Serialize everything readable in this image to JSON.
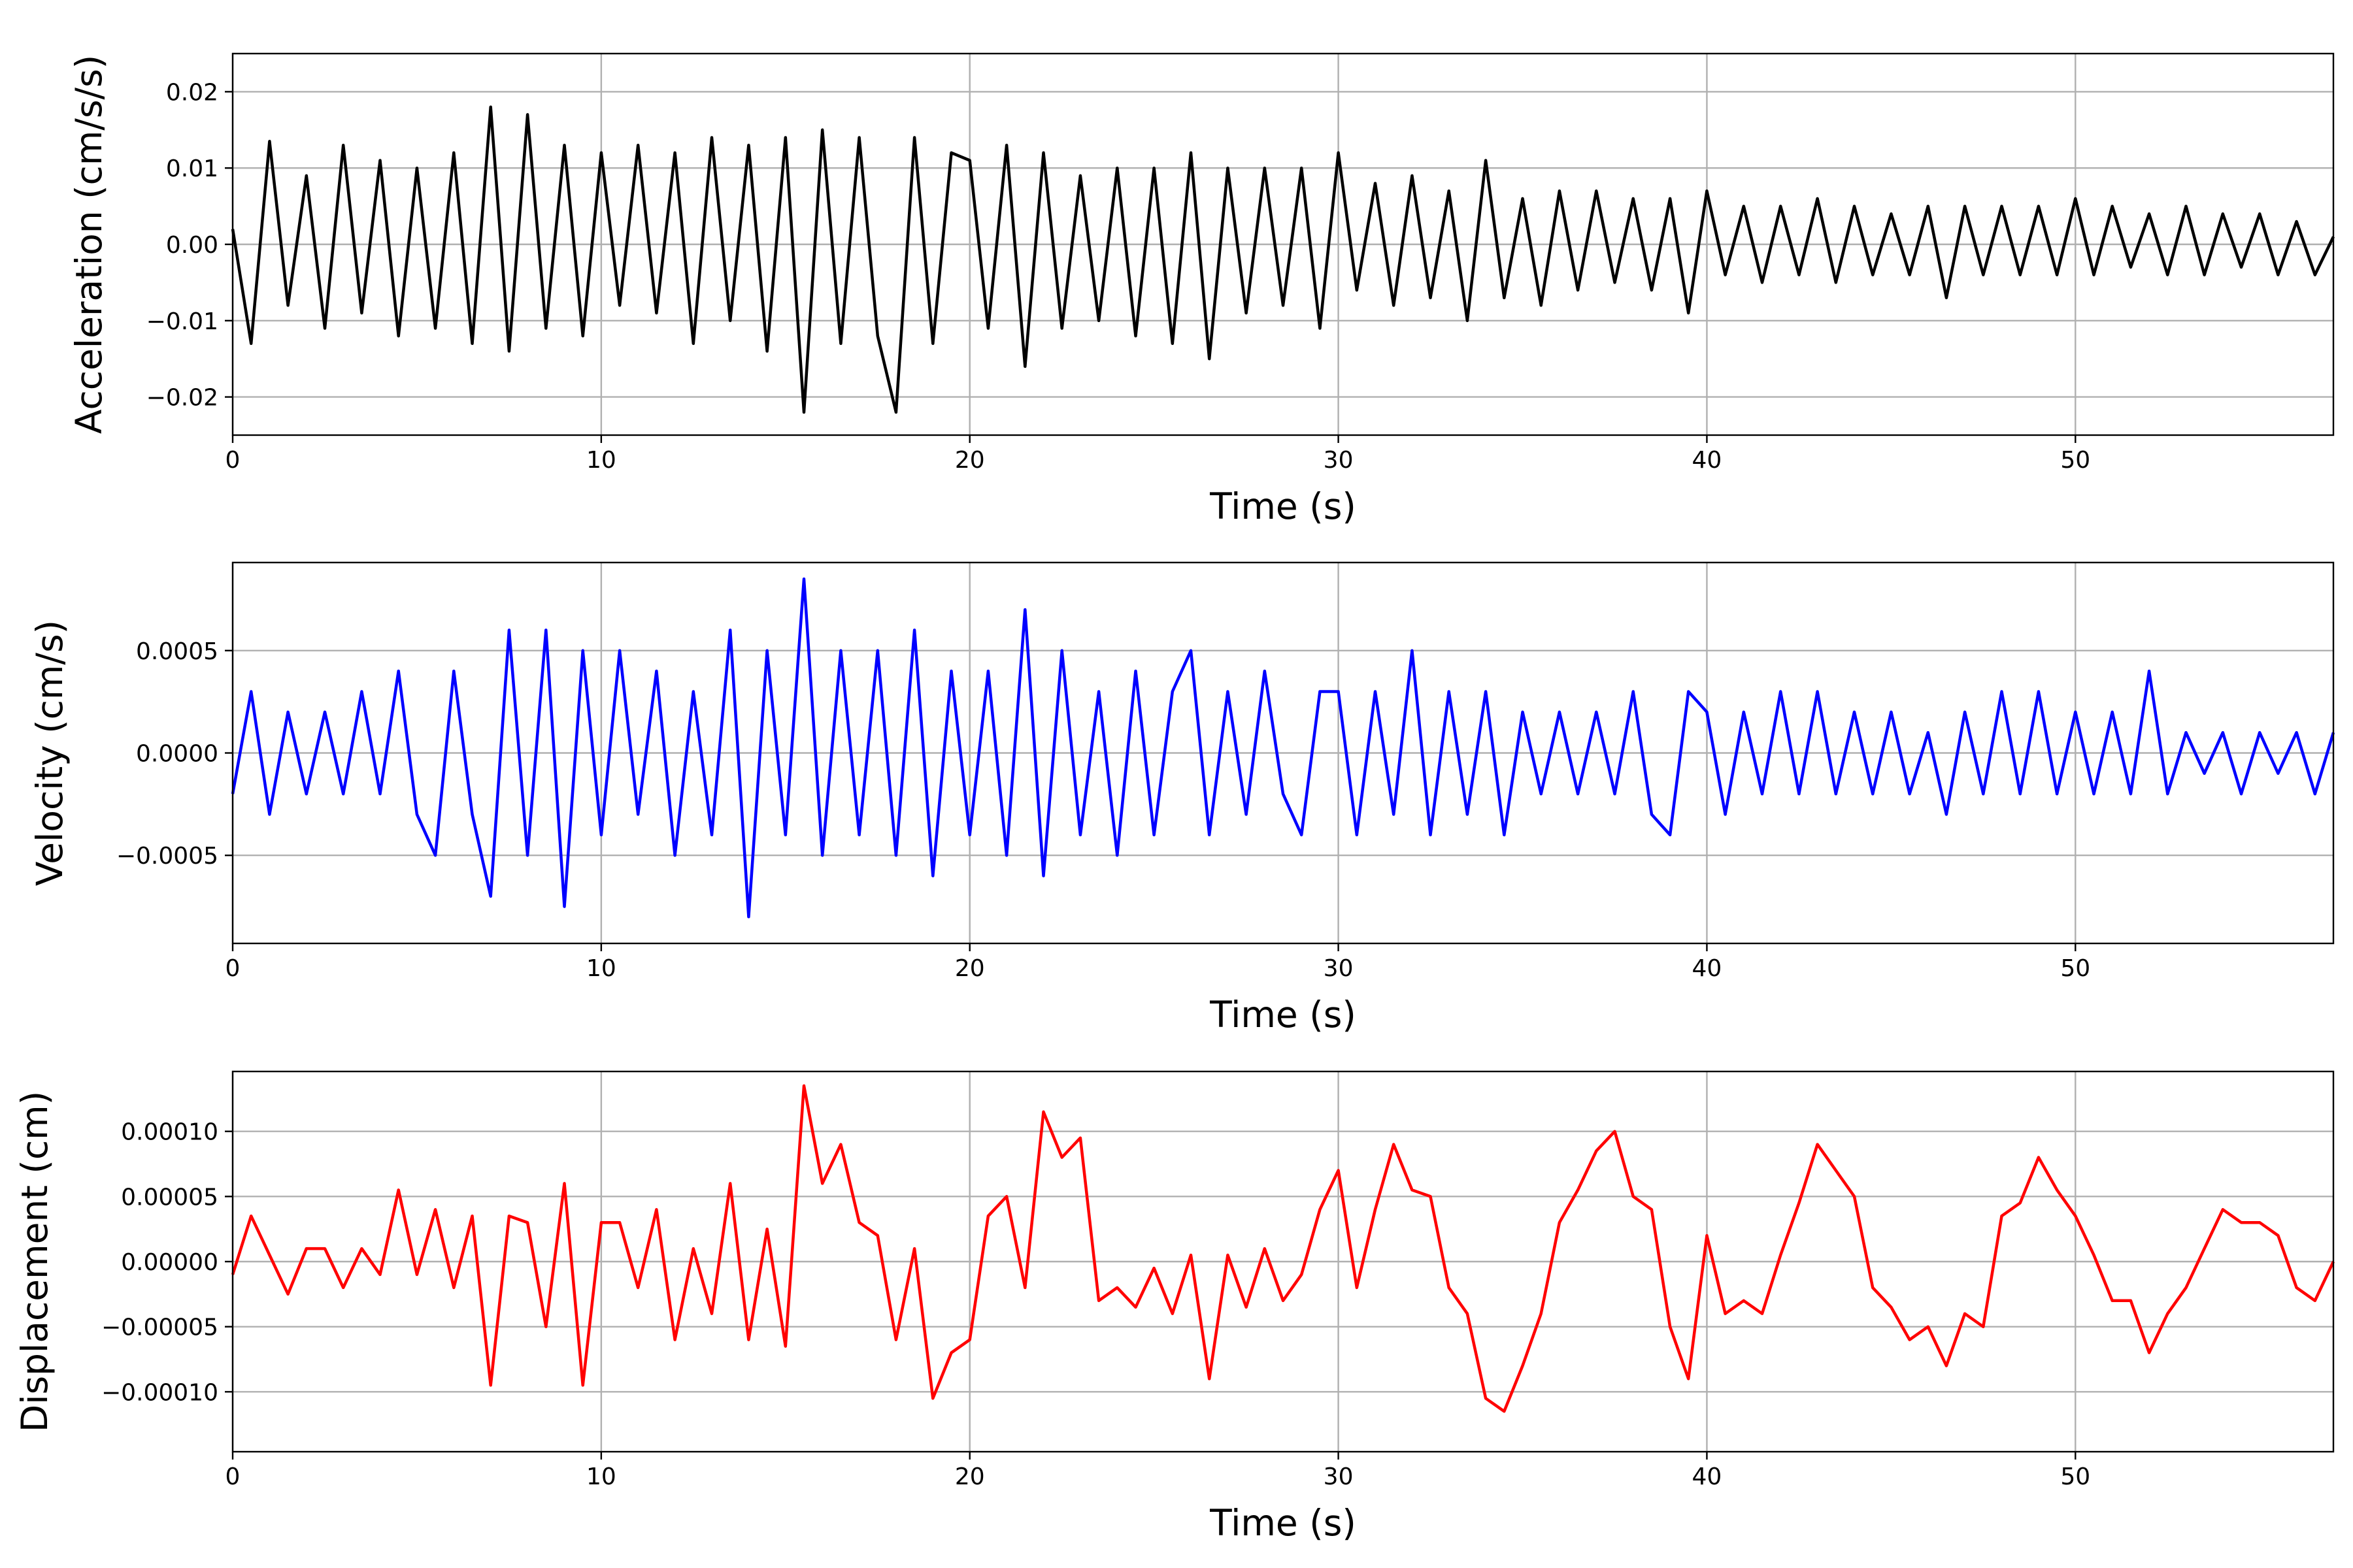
{
  "chart_data": [
    {
      "type": "line",
      "xlabel": "Time (s)",
      "ylabel": "Acceleration (cm/s/s)",
      "xlim": [
        0,
        57
      ],
      "ylim": [
        -0.025,
        0.025
      ],
      "xticks": [
        0,
        10,
        20,
        30,
        40,
        50
      ],
      "xtick_labels": [
        "0",
        "10",
        "20",
        "30",
        "40",
        "50"
      ],
      "yticks": [
        -0.02,
        -0.01,
        0.0,
        0.01,
        0.02
      ],
      "ytick_labels": [
        "−0.02",
        "−0.01",
        "0.00",
        "0.01",
        "0.02"
      ],
      "grid": true,
      "color": "#000000",
      "series": [
        {
          "x": [
            0,
            0.5,
            1,
            1.5,
            2,
            2.5,
            3,
            3.5,
            4,
            4.5,
            5,
            5.5,
            6,
            6.5,
            7,
            7.5,
            8,
            8.5,
            9,
            9.5,
            10,
            10.5,
            11,
            11.5,
            12,
            12.5,
            13,
            13.5,
            14,
            14.5,
            15,
            15.5,
            16,
            16.5,
            17,
            17.5,
            18,
            18.5,
            19,
            19.5,
            20,
            20.5,
            21,
            21.5,
            22,
            22.5,
            23,
            23.5,
            24,
            24.5,
            25,
            25.5,
            26,
            26.5,
            27,
            27.5,
            28,
            28.5,
            29,
            29.5,
            30,
            30.5,
            31,
            31.5,
            32,
            32.5,
            33,
            33.5,
            34,
            34.5,
            35,
            35.5,
            36,
            36.5,
            37,
            37.5,
            38,
            38.5,
            39,
            39.5,
            40,
            40.5,
            41,
            41.5,
            42,
            42.5,
            43,
            43.5,
            44,
            44.5,
            45,
            45.5,
            46,
            46.5,
            47,
            47.5,
            48,
            48.5,
            49,
            49.5,
            50,
            50.5,
            51,
            51.5,
            52,
            52.5,
            53,
            53.5,
            54,
            54.5,
            55,
            55.5,
            56,
            56.5,
            57
          ],
          "y": [
            0.002,
            -0.013,
            0.0135,
            -0.008,
            0.009,
            -0.011,
            0.013,
            -0.009,
            0.011,
            -0.012,
            0.01,
            -0.011,
            0.012,
            -0.013,
            0.018,
            -0.014,
            0.017,
            -0.011,
            0.013,
            -0.012,
            0.012,
            -0.008,
            0.013,
            -0.009,
            0.012,
            -0.013,
            0.014,
            -0.01,
            0.013,
            -0.014,
            0.014,
            -0.022,
            0.015,
            -0.013,
            0.014,
            -0.012,
            -0.022,
            0.014,
            -0.013,
            0.012,
            0.011,
            -0.011,
            0.013,
            -0.016,
            0.012,
            -0.011,
            0.009,
            -0.01,
            0.01,
            -0.012,
            0.01,
            -0.013,
            0.012,
            -0.015,
            0.01,
            -0.009,
            0.01,
            -0.008,
            0.01,
            -0.011,
            0.012,
            -0.006,
            0.008,
            -0.008,
            0.009,
            -0.007,
            0.007,
            -0.01,
            0.011,
            -0.007,
            0.006,
            -0.008,
            0.007,
            -0.006,
            0.007,
            -0.005,
            0.006,
            -0.006,
            0.006,
            -0.009,
            0.007,
            -0.004,
            0.005,
            -0.005,
            0.005,
            -0.004,
            0.006,
            -0.005,
            0.005,
            -0.004,
            0.004,
            -0.004,
            0.005,
            -0.007,
            0.005,
            -0.004,
            0.005,
            -0.004,
            0.005,
            -0.004,
            0.006,
            -0.004,
            0.005,
            -0.003,
            0.004,
            -0.004,
            0.005,
            -0.004,
            0.004,
            -0.003,
            0.004,
            -0.004,
            0.003,
            -0.004,
            0.001
          ]
        }
      ]
    },
    {
      "type": "line",
      "xlabel": "Time (s)",
      "ylabel": "Velocity (cm/s)",
      "xlim": [
        0,
        57
      ],
      "ylim": [
        -0.00093,
        0.00093
      ],
      "xticks": [
        0,
        10,
        20,
        30,
        40,
        50
      ],
      "xtick_labels": [
        "0",
        "10",
        "20",
        "30",
        "40",
        "50"
      ],
      "yticks": [
        -0.0005,
        0.0,
        0.0005
      ],
      "ytick_labels": [
        "−0.0005",
        "0.0000",
        "0.0005"
      ],
      "grid": true,
      "color": "#0000ff",
      "series": [
        {
          "x": [
            0,
            0.5,
            1,
            1.5,
            2,
            2.5,
            3,
            3.5,
            4,
            4.5,
            5,
            5.5,
            6,
            6.5,
            7,
            7.5,
            8,
            8.5,
            9,
            9.5,
            10,
            10.5,
            11,
            11.5,
            12,
            12.5,
            13,
            13.5,
            14,
            14.5,
            15,
            15.5,
            16,
            16.5,
            17,
            17.5,
            18,
            18.5,
            19,
            19.5,
            20,
            20.5,
            21,
            21.5,
            22,
            22.5,
            23,
            23.5,
            24,
            24.5,
            25,
            25.5,
            26,
            26.5,
            27,
            27.5,
            28,
            28.5,
            29,
            29.5,
            30,
            30.5,
            31,
            31.5,
            32,
            32.5,
            33,
            33.5,
            34,
            34.5,
            35,
            35.5,
            36,
            36.5,
            37,
            37.5,
            38,
            38.5,
            39,
            39.5,
            40,
            40.5,
            41,
            41.5,
            42,
            42.5,
            43,
            43.5,
            44,
            44.5,
            45,
            45.5,
            46,
            46.5,
            47,
            47.5,
            48,
            48.5,
            49,
            49.5,
            50,
            50.5,
            51,
            51.5,
            52,
            52.5,
            53,
            53.5,
            54,
            54.5,
            55,
            55.5,
            56,
            56.5,
            57
          ],
          "y": [
            -0.0002,
            0.0003,
            -0.0003,
            0.0002,
            -0.0002,
            0.0002,
            -0.0002,
            0.0003,
            -0.0002,
            0.0004,
            -0.0003,
            -0.0005,
            0.0004,
            -0.0003,
            -0.0007,
            0.0006,
            -0.0005,
            0.0006,
            -0.00075,
            0.0005,
            -0.0004,
            0.0005,
            -0.0003,
            0.0004,
            -0.0005,
            0.0003,
            -0.0004,
            0.0006,
            -0.0008,
            0.0005,
            -0.0004,
            0.00085,
            -0.0005,
            0.0005,
            -0.0004,
            0.0005,
            -0.0005,
            0.0006,
            -0.0006,
            0.0004,
            -0.0004,
            0.0004,
            -0.0005,
            0.0007,
            -0.0006,
            0.0005,
            -0.0004,
            0.0003,
            -0.0005,
            0.0004,
            -0.0004,
            0.0003,
            0.0005,
            -0.0004,
            0.0003,
            -0.0003,
            0.0004,
            -0.0002,
            -0.0004,
            0.0003,
            0.0003,
            -0.0004,
            0.0003,
            -0.0003,
            0.0005,
            -0.0004,
            0.0003,
            -0.0003,
            0.0003,
            -0.0004,
            0.0002,
            -0.0002,
            0.0002,
            -0.0002,
            0.0002,
            -0.0002,
            0.0003,
            -0.0003,
            -0.0004,
            0.0003,
            0.0002,
            -0.0003,
            0.0002,
            -0.0002,
            0.0003,
            -0.0002,
            0.0003,
            -0.0002,
            0.0002,
            -0.0002,
            0.0002,
            -0.0002,
            0.0001,
            -0.0003,
            0.0002,
            -0.0002,
            0.0003,
            -0.0002,
            0.0003,
            -0.0002,
            0.0002,
            -0.0002,
            0.0002,
            -0.0002,
            0.0004,
            -0.0002,
            0.0001,
            -0.0001,
            0.0001,
            -0.0002,
            0.0001,
            -0.0001,
            0.0001,
            -0.0002,
            0.0001
          ]
        }
      ]
    },
    {
      "type": "line",
      "xlabel": "Time (s)",
      "ylabel": "Displacement (cm)",
      "xlim": [
        0,
        57
      ],
      "ylim": [
        -0.000146,
        0.000146
      ],
      "xticks": [
        0,
        10,
        20,
        30,
        40,
        50
      ],
      "xtick_labels": [
        "0",
        "10",
        "20",
        "30",
        "40",
        "50"
      ],
      "yticks": [
        -0.0001,
        -5e-05,
        0.0,
        5e-05,
        0.0001
      ],
      "ytick_labels": [
        "−0.00010",
        "−0.00005",
        "0.00000",
        "0.00005",
        "0.00010"
      ],
      "grid": true,
      "color": "#ff0000",
      "series": [
        {
          "x": [
            0,
            0.5,
            1,
            1.5,
            2,
            2.5,
            3,
            3.5,
            4,
            4.5,
            5,
            5.5,
            6,
            6.5,
            7,
            7.5,
            8,
            8.5,
            9,
            9.5,
            10,
            10.5,
            11,
            11.5,
            12,
            12.5,
            13,
            13.5,
            14,
            14.5,
            15,
            15.5,
            16,
            16.5,
            17,
            17.5,
            18,
            18.5,
            19,
            19.5,
            20,
            20.5,
            21,
            21.5,
            22,
            22.5,
            23,
            23.5,
            24,
            24.5,
            25,
            25.5,
            26,
            26.5,
            27,
            27.5,
            28,
            28.5,
            29,
            29.5,
            30,
            30.5,
            31,
            31.5,
            32,
            32.5,
            33,
            33.5,
            34,
            34.5,
            35,
            35.5,
            36,
            36.5,
            37,
            37.5,
            38,
            38.5,
            39,
            39.5,
            40,
            40.5,
            41,
            41.5,
            42,
            42.5,
            43,
            43.5,
            44,
            44.5,
            45,
            45.5,
            46,
            46.5,
            47,
            47.5,
            48,
            48.5,
            49,
            49.5,
            50,
            50.5,
            51,
            51.5,
            52,
            52.5,
            53,
            53.5,
            54,
            54.5,
            55,
            55.5,
            56,
            56.5,
            57
          ],
          "y": [
            -1e-05,
            3.5e-05,
            5e-06,
            -2.5e-05,
            1e-05,
            1e-05,
            -2e-05,
            1e-05,
            -1e-05,
            5.5e-05,
            -1e-05,
            4e-05,
            -2e-05,
            3.5e-05,
            -9.5e-05,
            3.5e-05,
            3e-05,
            -5e-05,
            6e-05,
            -9.5e-05,
            3e-05,
            3e-05,
            -2e-05,
            4e-05,
            -6e-05,
            1e-05,
            -4e-05,
            6e-05,
            -6e-05,
            2.5e-05,
            -6.5e-05,
            0.000135,
            6e-05,
            9e-05,
            3e-05,
            2e-05,
            -6e-05,
            1e-05,
            -0.000105,
            -7e-05,
            -6e-05,
            3.5e-05,
            5e-05,
            -2e-05,
            0.000115,
            8e-05,
            9.5e-05,
            -3e-05,
            -2e-05,
            -3.5e-05,
            -5e-06,
            -4e-05,
            5e-06,
            -9e-05,
            5e-06,
            -3.5e-05,
            1e-05,
            -3e-05,
            -1e-05,
            4e-05,
            7e-05,
            -2e-05,
            4e-05,
            9e-05,
            5.5e-05,
            5e-05,
            -2e-05,
            -4e-05,
            -0.000105,
            -0.000115,
            -8e-05,
            -4e-05,
            3e-05,
            5.5e-05,
            8.5e-05,
            0.0001,
            5e-05,
            4e-05,
            -5e-05,
            -9e-05,
            2e-05,
            -4e-05,
            -3e-05,
            -4e-05,
            5e-06,
            4.5e-05,
            9e-05,
            7e-05,
            5e-05,
            -2e-05,
            -3.5e-05,
            -6e-05,
            -5e-05,
            -8e-05,
            -4e-05,
            -5e-05,
            3.5e-05,
            4.5e-05,
            8e-05,
            5.5e-05,
            3.5e-05,
            5e-06,
            -3e-05,
            -3e-05,
            -7e-05,
            -4e-05,
            -2e-05,
            1e-05,
            4e-05,
            3e-05,
            3e-05,
            2e-05,
            -2e-05,
            -3e-05,
            0
          ]
        }
      ]
    }
  ]
}
